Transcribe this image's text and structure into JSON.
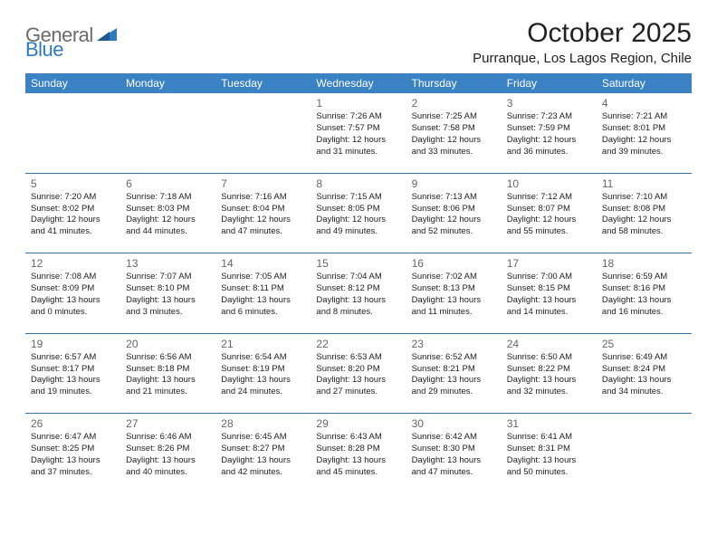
{
  "logo": {
    "text1": "General",
    "text2": "Blue"
  },
  "title": "October 2025",
  "location": "Purranque, Los Lagos Region, Chile",
  "colors": {
    "header_bg": "#3b82c4",
    "header_text": "#ffffff",
    "rule": "#3b6fa0",
    "logo_gray": "#6b6b6b",
    "logo_blue": "#2f7bbf"
  },
  "headers": [
    "Sunday",
    "Monday",
    "Tuesday",
    "Wednesday",
    "Thursday",
    "Friday",
    "Saturday"
  ],
  "weeks": [
    [
      {
        "n": "",
        "sr": "",
        "ss": "",
        "dl": ""
      },
      {
        "n": "",
        "sr": "",
        "ss": "",
        "dl": ""
      },
      {
        "n": "",
        "sr": "",
        "ss": "",
        "dl": ""
      },
      {
        "n": "1",
        "sr": "7:26 AM",
        "ss": "7:57 PM",
        "dl": "12 hours and 31 minutes."
      },
      {
        "n": "2",
        "sr": "7:25 AM",
        "ss": "7:58 PM",
        "dl": "12 hours and 33 minutes."
      },
      {
        "n": "3",
        "sr": "7:23 AM",
        "ss": "7:59 PM",
        "dl": "12 hours and 36 minutes."
      },
      {
        "n": "4",
        "sr": "7:21 AM",
        "ss": "8:01 PM",
        "dl": "12 hours and 39 minutes."
      }
    ],
    [
      {
        "n": "5",
        "sr": "7:20 AM",
        "ss": "8:02 PM",
        "dl": "12 hours and 41 minutes."
      },
      {
        "n": "6",
        "sr": "7:18 AM",
        "ss": "8:03 PM",
        "dl": "12 hours and 44 minutes."
      },
      {
        "n": "7",
        "sr": "7:16 AM",
        "ss": "8:04 PM",
        "dl": "12 hours and 47 minutes."
      },
      {
        "n": "8",
        "sr": "7:15 AM",
        "ss": "8:05 PM",
        "dl": "12 hours and 49 minutes."
      },
      {
        "n": "9",
        "sr": "7:13 AM",
        "ss": "8:06 PM",
        "dl": "12 hours and 52 minutes."
      },
      {
        "n": "10",
        "sr": "7:12 AM",
        "ss": "8:07 PM",
        "dl": "12 hours and 55 minutes."
      },
      {
        "n": "11",
        "sr": "7:10 AM",
        "ss": "8:08 PM",
        "dl": "12 hours and 58 minutes."
      }
    ],
    [
      {
        "n": "12",
        "sr": "7:08 AM",
        "ss": "8:09 PM",
        "dl": "13 hours and 0 minutes."
      },
      {
        "n": "13",
        "sr": "7:07 AM",
        "ss": "8:10 PM",
        "dl": "13 hours and 3 minutes."
      },
      {
        "n": "14",
        "sr": "7:05 AM",
        "ss": "8:11 PM",
        "dl": "13 hours and 6 minutes."
      },
      {
        "n": "15",
        "sr": "7:04 AM",
        "ss": "8:12 PM",
        "dl": "13 hours and 8 minutes."
      },
      {
        "n": "16",
        "sr": "7:02 AM",
        "ss": "8:13 PM",
        "dl": "13 hours and 11 minutes."
      },
      {
        "n": "17",
        "sr": "7:00 AM",
        "ss": "8:15 PM",
        "dl": "13 hours and 14 minutes."
      },
      {
        "n": "18",
        "sr": "6:59 AM",
        "ss": "8:16 PM",
        "dl": "13 hours and 16 minutes."
      }
    ],
    [
      {
        "n": "19",
        "sr": "6:57 AM",
        "ss": "8:17 PM",
        "dl": "13 hours and 19 minutes."
      },
      {
        "n": "20",
        "sr": "6:56 AM",
        "ss": "8:18 PM",
        "dl": "13 hours and 21 minutes."
      },
      {
        "n": "21",
        "sr": "6:54 AM",
        "ss": "8:19 PM",
        "dl": "13 hours and 24 minutes."
      },
      {
        "n": "22",
        "sr": "6:53 AM",
        "ss": "8:20 PM",
        "dl": "13 hours and 27 minutes."
      },
      {
        "n": "23",
        "sr": "6:52 AM",
        "ss": "8:21 PM",
        "dl": "13 hours and 29 minutes."
      },
      {
        "n": "24",
        "sr": "6:50 AM",
        "ss": "8:22 PM",
        "dl": "13 hours and 32 minutes."
      },
      {
        "n": "25",
        "sr": "6:49 AM",
        "ss": "8:24 PM",
        "dl": "13 hours and 34 minutes."
      }
    ],
    [
      {
        "n": "26",
        "sr": "6:47 AM",
        "ss": "8:25 PM",
        "dl": "13 hours and 37 minutes."
      },
      {
        "n": "27",
        "sr": "6:46 AM",
        "ss": "8:26 PM",
        "dl": "13 hours and 40 minutes."
      },
      {
        "n": "28",
        "sr": "6:45 AM",
        "ss": "8:27 PM",
        "dl": "13 hours and 42 minutes."
      },
      {
        "n": "29",
        "sr": "6:43 AM",
        "ss": "8:28 PM",
        "dl": "13 hours and 45 minutes."
      },
      {
        "n": "30",
        "sr": "6:42 AM",
        "ss": "8:30 PM",
        "dl": "13 hours and 47 minutes."
      },
      {
        "n": "31",
        "sr": "6:41 AM",
        "ss": "8:31 PM",
        "dl": "13 hours and 50 minutes."
      },
      {
        "n": "",
        "sr": "",
        "ss": "",
        "dl": ""
      }
    ]
  ],
  "labels": {
    "sunrise": "Sunrise: ",
    "sunset": "Sunset: ",
    "daylight": "Daylight: "
  }
}
